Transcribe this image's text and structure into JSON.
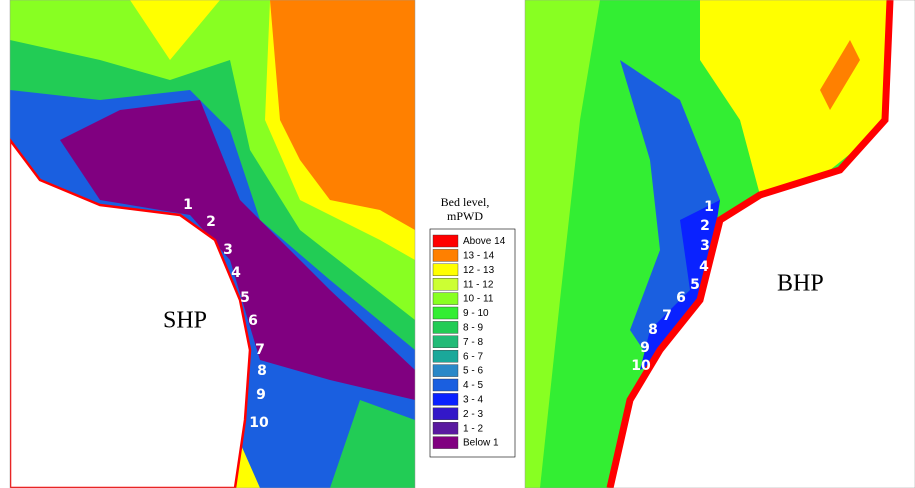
{
  "left_map": {
    "label": "SHP",
    "points": [
      "1",
      "2",
      "3",
      "4",
      "5",
      "6",
      "7",
      "8",
      "9",
      "10"
    ]
  },
  "right_map": {
    "label": "BHP",
    "points": [
      "1",
      "2",
      "3",
      "4",
      "5",
      "6",
      "7",
      "8",
      "9",
      "10"
    ]
  },
  "legend": {
    "title": [
      "Bed level,",
      "mPWD"
    ],
    "items": [
      {
        "label": "Above 14",
        "color": "#ff0000"
      },
      {
        "label": "13 - 14",
        "color": "#ff8000"
      },
      {
        "label": "12 - 13",
        "color": "#ffff00"
      },
      {
        "label": "11 - 12",
        "color": "#ccff33"
      },
      {
        "label": "10 - 11",
        "color": "#88ff22"
      },
      {
        "label": "9 - 10",
        "color": "#33ee33"
      },
      {
        "label": "8 -  9",
        "color": "#22cc55"
      },
      {
        "label": "7 -  8",
        "color": "#22bb77"
      },
      {
        "label": "6 -  7",
        "color": "#1aa89a"
      },
      {
        "label": "5 -  6",
        "color": "#2a88c8"
      },
      {
        "label": "4 -  5",
        "color": "#1a5fe0"
      },
      {
        "label": "3 -  4",
        "color": "#0a22ff"
      },
      {
        "label": "2 -  3",
        "color": "#3318c8"
      },
      {
        "label": "1 -  2",
        "color": "#5a1aa0"
      },
      {
        "label": "Below  1",
        "color": "#800080"
      }
    ]
  }
}
